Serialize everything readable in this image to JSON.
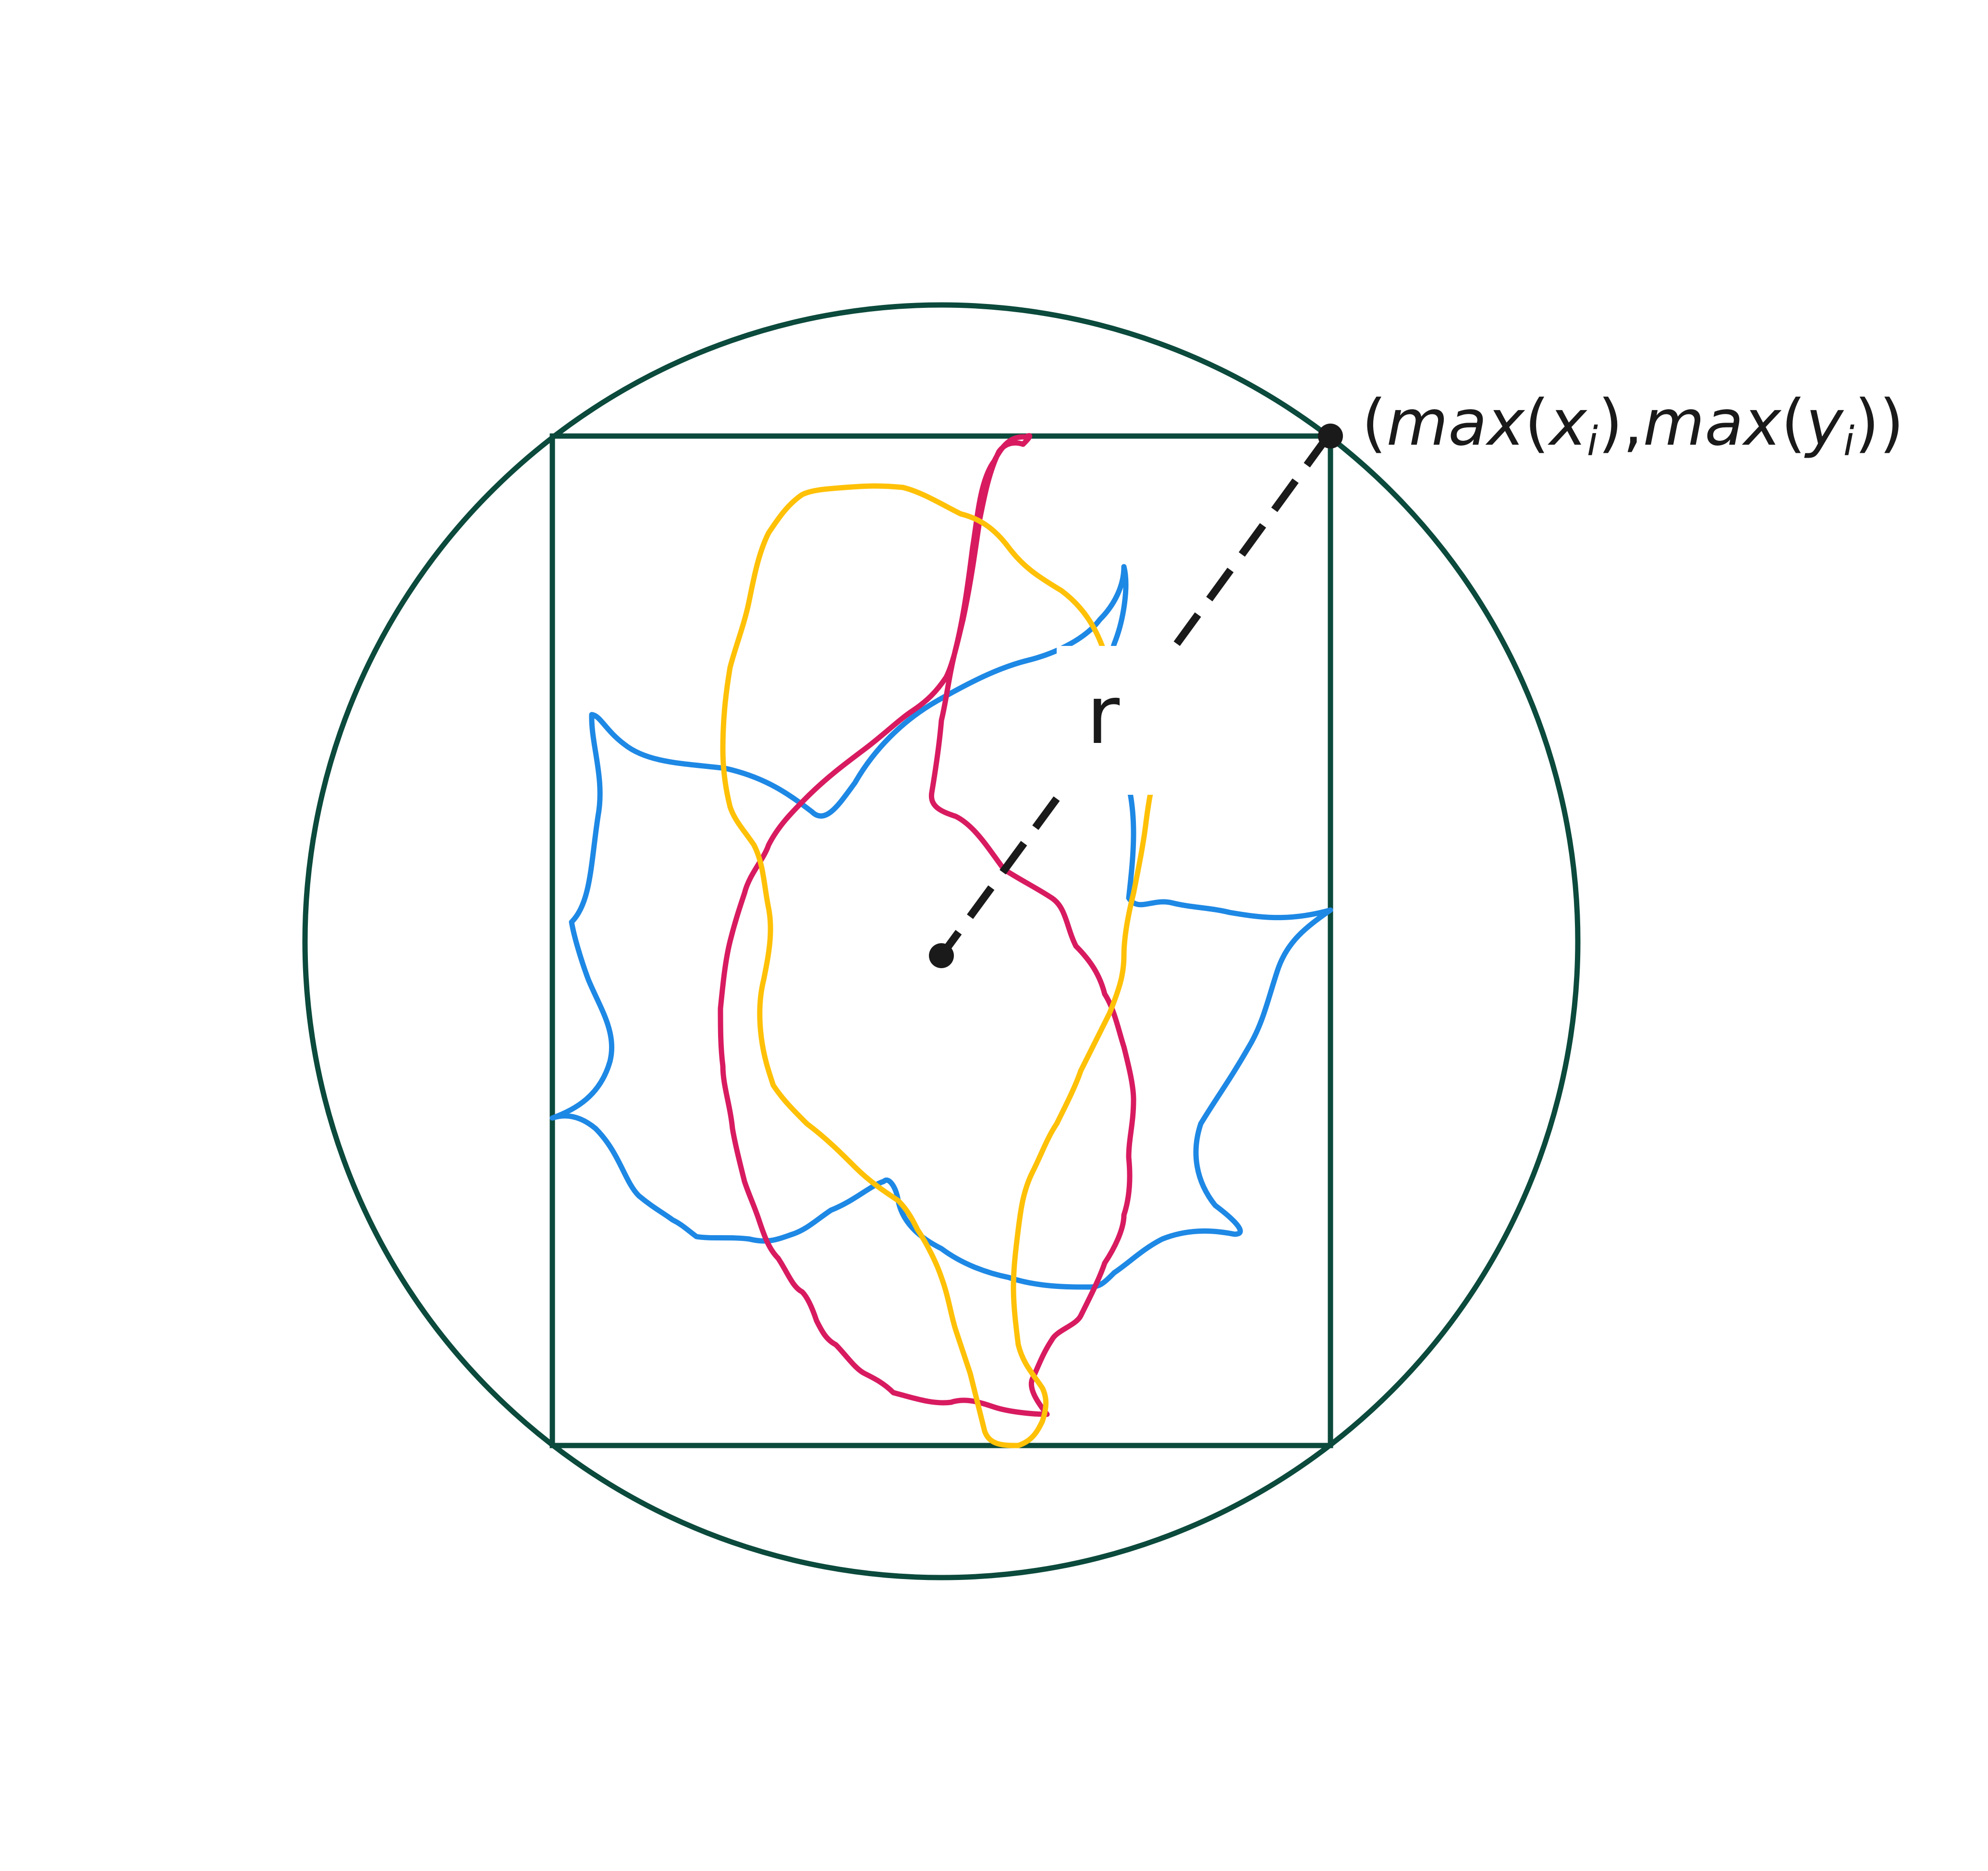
{
  "diagram": {
    "radius_label": "r",
    "corner_label": {
      "open": "(",
      "fn_x": "max",
      "arg_x_open": "(",
      "var_x": "x",
      "sub_x": "i",
      "arg_x_close": ")",
      "comma": ",",
      "fn_y": "max",
      "arg_y_open": "(",
      "var_y": "y",
      "sub_y": "i",
      "arg_y_close": ")",
      "close": ")"
    },
    "colors": {
      "frame": "#0b4a3c",
      "radius_line": "#1a1a1a",
      "shape_blue": "#1e88e5",
      "shape_red": "#d81b60",
      "shape_yellow": "#ffc107"
    },
    "shapes": [
      "blue-contour",
      "red-contour",
      "yellow-contour"
    ]
  }
}
